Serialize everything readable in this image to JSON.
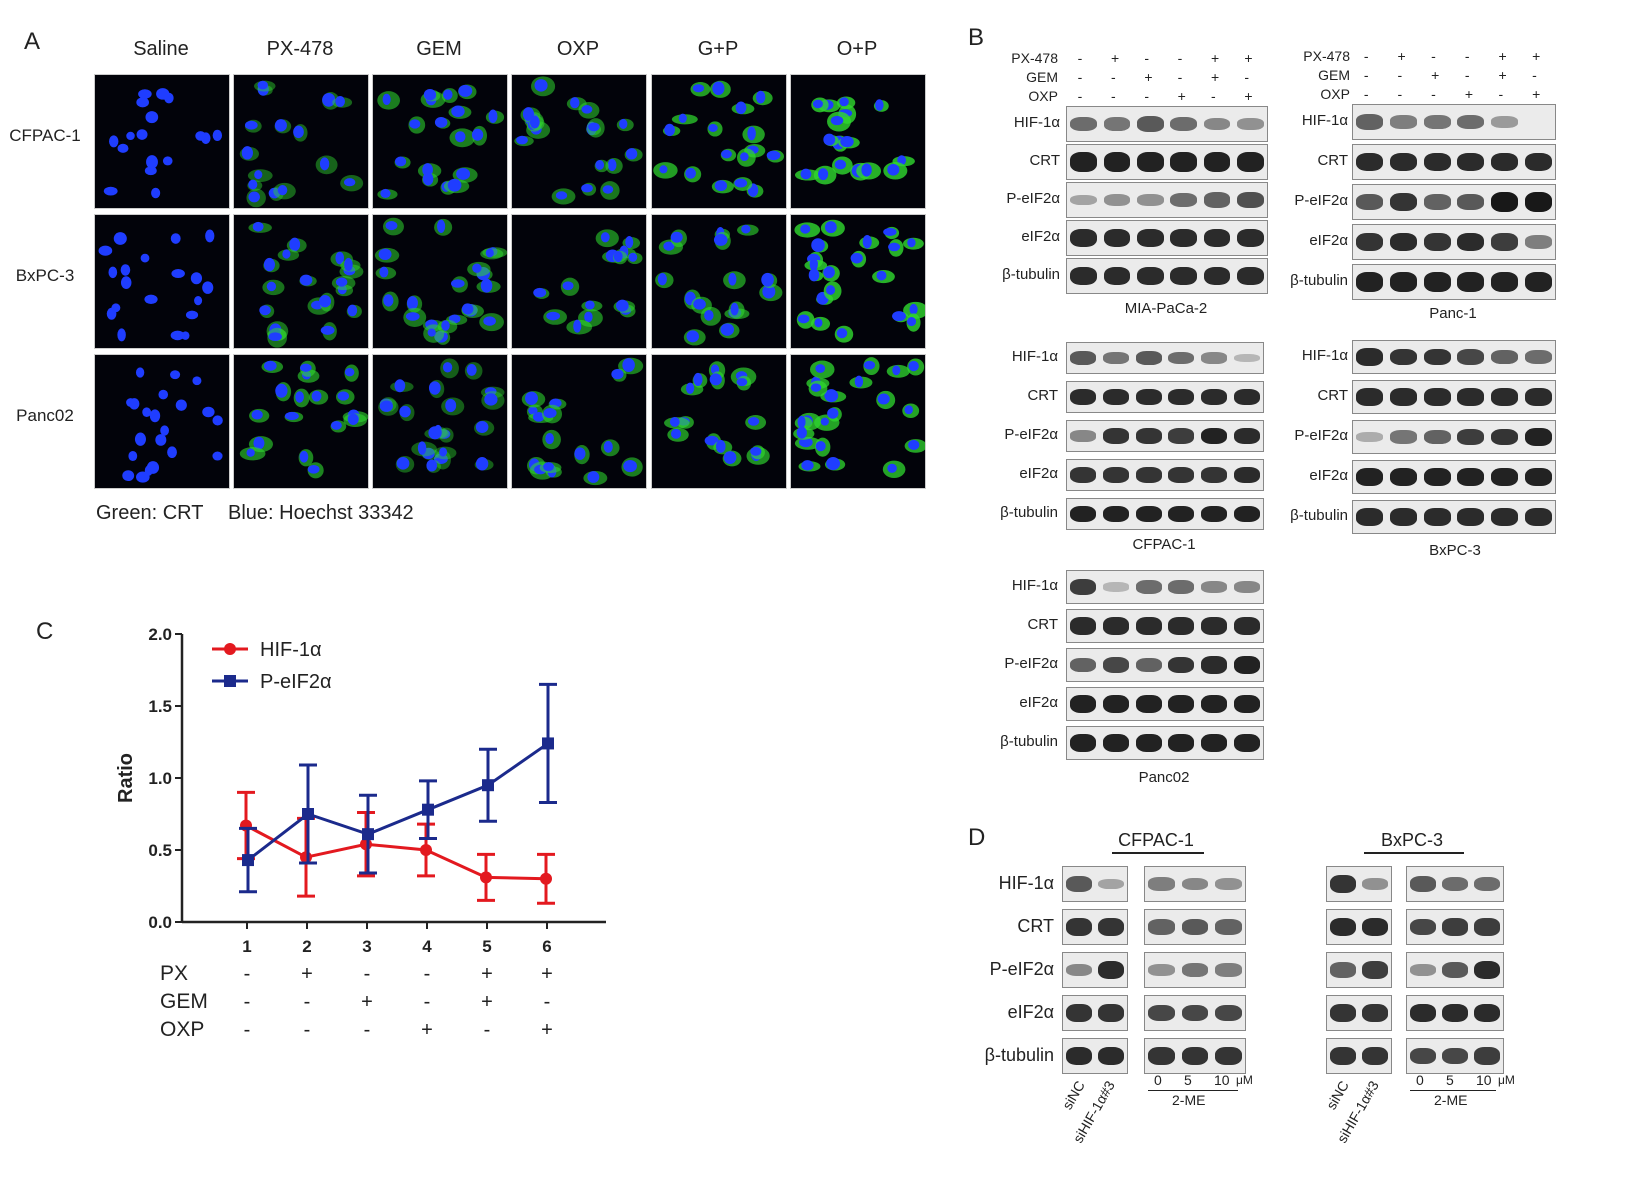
{
  "panelA": {
    "letter": "A",
    "columns": [
      "Saline",
      "PX-478",
      "GEM",
      "OXP",
      "G+P",
      "O+P"
    ],
    "rows": [
      "CFPAC-1",
      "BxPC-3",
      "Panc02"
    ],
    "legend_green": "Green: CRT",
    "legend_blue": "Blue: Hoechst 33342",
    "colors": {
      "nucleus": "#1f3dff",
      "crt": "#2fd62f",
      "bg": "#02030a"
    },
    "green_level": [
      [
        0.0,
        0.35,
        0.55,
        0.5,
        0.8,
        0.95
      ],
      [
        0.0,
        0.45,
        0.5,
        0.55,
        0.6,
        0.95
      ],
      [
        0.0,
        0.6,
        0.3,
        0.55,
        0.7,
        0.85
      ]
    ]
  },
  "panelB": {
    "letter": "B",
    "treatment_rows": [
      {
        "label": "PX-478",
        "marks": [
          "-",
          "+",
          "-",
          "-",
          "+",
          "+"
        ]
      },
      {
        "label": "GEM",
        "marks": [
          "-",
          "-",
          "+",
          "-",
          "+",
          "-"
        ]
      },
      {
        "label": "OXP",
        "marks": [
          "-",
          "-",
          "-",
          "+",
          "-",
          "+"
        ]
      }
    ],
    "bands": [
      "HIF-1α",
      "CRT",
      "P-eIF2α",
      "eIF2α",
      "β-tubulin"
    ],
    "blots": [
      {
        "cell_line": "MIA-PaCa-2",
        "intensity": [
          [
            0.5,
            0.45,
            0.6,
            0.5,
            0.35,
            0.3
          ],
          [
            0.9,
            0.9,
            0.9,
            0.9,
            0.9,
            0.9
          ],
          [
            0.2,
            0.3,
            0.3,
            0.5,
            0.55,
            0.65
          ],
          [
            0.85,
            0.85,
            0.85,
            0.85,
            0.85,
            0.85
          ],
          [
            0.85,
            0.85,
            0.85,
            0.85,
            0.85,
            0.85
          ]
        ]
      },
      {
        "cell_line": "Panc-1",
        "intensity": [
          [
            0.55,
            0.4,
            0.45,
            0.5,
            0.25,
            0.0
          ],
          [
            0.85,
            0.85,
            0.85,
            0.85,
            0.85,
            0.85
          ],
          [
            0.6,
            0.8,
            0.55,
            0.6,
            0.95,
            0.95
          ],
          [
            0.8,
            0.85,
            0.8,
            0.85,
            0.75,
            0.4
          ],
          [
            0.9,
            0.9,
            0.9,
            0.9,
            0.9,
            0.9
          ]
        ]
      },
      {
        "cell_line": "CFPAC-1",
        "intensity": [
          [
            0.6,
            0.45,
            0.6,
            0.5,
            0.35,
            0.1
          ],
          [
            0.85,
            0.85,
            0.85,
            0.85,
            0.85,
            0.85
          ],
          [
            0.35,
            0.8,
            0.8,
            0.75,
            0.9,
            0.85
          ],
          [
            0.8,
            0.8,
            0.8,
            0.8,
            0.8,
            0.85
          ],
          [
            0.9,
            0.9,
            0.9,
            0.9,
            0.9,
            0.9
          ]
        ]
      },
      {
        "cell_line": "BxPC-3",
        "intensity": [
          [
            0.85,
            0.8,
            0.8,
            0.7,
            0.55,
            0.5
          ],
          [
            0.85,
            0.85,
            0.85,
            0.85,
            0.85,
            0.85
          ],
          [
            0.15,
            0.45,
            0.55,
            0.75,
            0.8,
            0.9
          ],
          [
            0.9,
            0.9,
            0.9,
            0.9,
            0.9,
            0.9
          ],
          [
            0.85,
            0.85,
            0.85,
            0.85,
            0.85,
            0.85
          ]
        ]
      },
      {
        "cell_line": "Panc02",
        "intensity": [
          [
            0.75,
            0.1,
            0.5,
            0.5,
            0.35,
            0.35
          ],
          [
            0.85,
            0.85,
            0.85,
            0.85,
            0.85,
            0.85
          ],
          [
            0.55,
            0.7,
            0.55,
            0.8,
            0.85,
            0.9
          ],
          [
            0.9,
            0.9,
            0.9,
            0.9,
            0.9,
            0.9
          ],
          [
            0.9,
            0.9,
            0.9,
            0.9,
            0.9,
            0.9
          ]
        ]
      }
    ]
  },
  "panelC": {
    "letter": "C",
    "chart_data": {
      "type": "line",
      "ylabel": "Ratio",
      "ylim": [
        0,
        2.0
      ],
      "yticks": [
        "0.0",
        "0.5",
        "1.0",
        "1.5",
        "2.0"
      ],
      "x": [
        "1",
        "2",
        "3",
        "4",
        "5",
        "6"
      ],
      "legend_position": "top-left",
      "series": [
        {
          "name": "HIF-1α",
          "color": "#e3191f",
          "marker": "circle",
          "values": [
            0.67,
            0.45,
            0.54,
            0.5,
            0.31,
            0.3
          ],
          "errors": [
            0.23,
            0.27,
            0.22,
            0.18,
            0.16,
            0.17
          ]
        },
        {
          "name": "P-eIF2α",
          "color": "#1b2a8c",
          "marker": "square",
          "values": [
            0.43,
            0.75,
            0.61,
            0.78,
            0.95,
            1.24
          ],
          "errors": [
            0.22,
            0.34,
            0.27,
            0.2,
            0.25,
            0.41
          ]
        }
      ],
      "treatment_rows": [
        {
          "label": "PX",
          "marks": [
            "-",
            "+",
            "-",
            "-",
            "+",
            "+"
          ]
        },
        {
          "label": "GEM",
          "marks": [
            "-",
            "-",
            "+",
            "-",
            "+",
            "-"
          ]
        },
        {
          "label": "OXP",
          "marks": [
            "-",
            "-",
            "-",
            "+",
            "-",
            "+"
          ]
        }
      ]
    }
  },
  "panelD": {
    "letter": "D",
    "groups": [
      "CFPAC-1",
      "BxPC-3"
    ],
    "bands": [
      "HIF-1α",
      "CRT",
      "P-eIF2α",
      "eIF2α",
      "β-tubulin"
    ],
    "si_labels": [
      "siNC",
      "siHIF-1α#3"
    ],
    "dose_labels": [
      "0",
      "5",
      "10"
    ],
    "dose_unit": "μM",
    "dose_drug": "2-ME",
    "intensity": {
      "CFPAC-1": {
        "si": [
          [
            0.6,
            0.2
          ],
          [
            0.8,
            0.8
          ],
          [
            0.35,
            0.85
          ],
          [
            0.8,
            0.8
          ],
          [
            0.85,
            0.85
          ]
        ],
        "dose": [
          [
            0.4,
            0.35,
            0.3
          ],
          [
            0.55,
            0.6,
            0.55
          ],
          [
            0.3,
            0.45,
            0.4
          ],
          [
            0.7,
            0.7,
            0.7
          ],
          [
            0.8,
            0.8,
            0.8
          ]
        ]
      },
      "BxPC-3": {
        "si": [
          [
            0.8,
            0.3
          ],
          [
            0.85,
            0.85
          ],
          [
            0.55,
            0.75
          ],
          [
            0.8,
            0.8
          ],
          [
            0.8,
            0.8
          ]
        ],
        "dose": [
          [
            0.6,
            0.5,
            0.5
          ],
          [
            0.7,
            0.75,
            0.75
          ],
          [
            0.3,
            0.6,
            0.85
          ],
          [
            0.85,
            0.85,
            0.85
          ],
          [
            0.7,
            0.7,
            0.75
          ]
        ]
      }
    }
  }
}
